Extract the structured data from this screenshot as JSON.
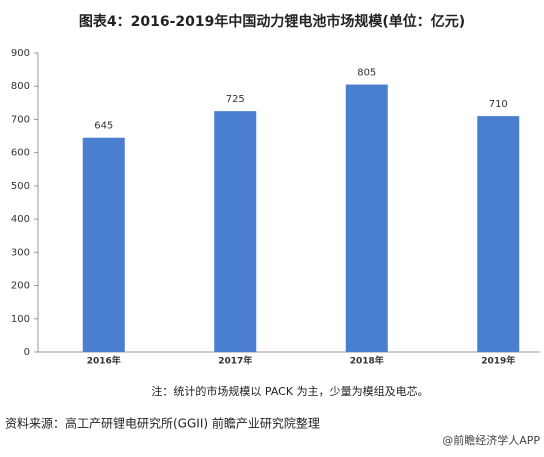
{
  "chart_data": {
    "type": "bar",
    "title": "图表4：2016-2019年中国动力锂电池市场规模(单位：亿元)",
    "categories": [
      "2016年",
      "2017年",
      "2018年",
      "2019年"
    ],
    "values": [
      645,
      725,
      805,
      710
    ],
    "color": "#4a7ecf",
    "ylim": [
      0,
      900
    ],
    "yticks": [
      0,
      100,
      200,
      300,
      400,
      500,
      600,
      700,
      800,
      900
    ],
    "grid": false,
    "note": "注：统计的市场规模以 PACK 为主，少量为模组及电芯。",
    "source": "资料来源：高工产研锂电研究所(GGII) 前瞻产业研究院整理",
    "watermark": "@前瞻经济学人APP"
  }
}
